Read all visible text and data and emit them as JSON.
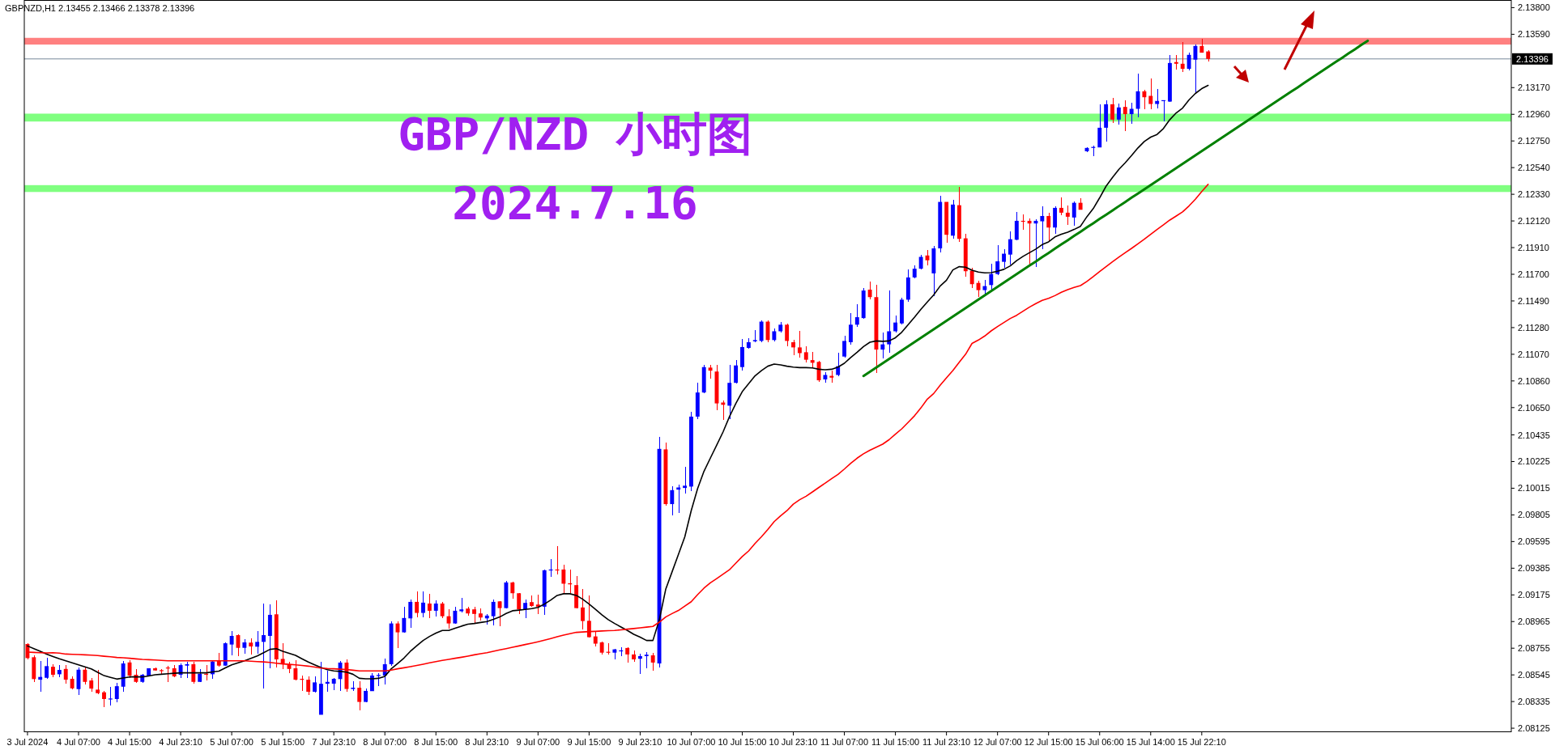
{
  "chart_data": {
    "type": "candlestick",
    "title": "GBP/NZD 小时图",
    "subtitle": "2024.7.16",
    "annotations": [
      "GBPNZD,H1  2.13455 2.13466 2.13378 2.13396"
    ],
    "categories": [
      "3 Jul 2024",
      null,
      null,
      null,
      null,
      null,
      null,
      null,
      "4 Jul 07:00",
      null,
      null,
      null,
      null,
      null,
      null,
      null,
      "4 Jul 15:00",
      null,
      null,
      null,
      null,
      null,
      null,
      null,
      "4 Jul 23:10",
      null,
      null,
      null,
      null,
      null,
      null,
      null,
      "5 Jul 07:00",
      null,
      null,
      null,
      null,
      null,
      null,
      null,
      "5 Jul 15:00",
      null,
      null,
      null,
      null,
      null,
      null,
      null,
      "7 Jul 23:10",
      null,
      null,
      null,
      null,
      null,
      null,
      null,
      "8 Jul 07:00",
      null,
      null,
      null,
      null,
      null,
      null,
      null,
      "8 Jul 15:00",
      null,
      null,
      null,
      null,
      null,
      null,
      null,
      "8 Jul 23:10",
      null,
      null,
      null,
      null,
      null,
      null,
      null,
      "9 Jul 07:00",
      null,
      null,
      null,
      null,
      null,
      null,
      null,
      "9 Jul 15:00",
      null,
      null,
      null,
      null,
      null,
      null,
      null,
      "9 Jul 23:10",
      null,
      null,
      null,
      null,
      null,
      null,
      null,
      "10 Jul 07:00",
      null,
      null,
      null,
      null,
      null,
      null,
      null,
      "10 Jul 15:00",
      null,
      null,
      null,
      null,
      null,
      null,
      null,
      "10 Jul 23:10",
      null,
      null,
      null,
      null,
      null,
      null,
      null,
      "11 Jul 07:00",
      null,
      null,
      null,
      null,
      null,
      null,
      null,
      "11 Jul 15:00",
      null,
      null,
      null,
      null,
      null,
      null,
      null,
      "11 Jul 23:10",
      null,
      null,
      null,
      null,
      null,
      null,
      null,
      "12 Jul 07:00",
      null,
      null,
      null,
      null,
      null,
      null,
      null,
      "12 Jul 15:00",
      null,
      null,
      null,
      null,
      null,
      null,
      null,
      "15 Jul 06:00",
      null,
      null,
      null,
      null,
      null,
      null,
      null,
      "15 Jul 14:00",
      null,
      null,
      null,
      null,
      null,
      null,
      null,
      "15 Jul 22:10",
      null,
      null,
      null,
      null,
      null,
      null,
      null,
      null,
      null,
      null,
      null,
      null,
      null,
      null,
      null,
      null,
      null,
      null,
      null,
      null,
      null,
      null,
      null,
      null,
      null,
      null,
      null,
      null,
      null,
      null,
      null,
      null,
      null,
      null,
      null,
      null,
      null,
      null,
      null,
      null,
      null,
      null,
      null,
      null,
      null,
      null,
      null,
      null
    ],
    "ohlc": [
      [
        2.08788,
        2.08794,
        2.08667,
        2.08677
      ],
      [
        2.08684,
        2.08699,
        2.0849,
        2.08512
      ],
      [
        2.08507,
        2.08656,
        2.08412,
        2.08529
      ],
      [
        2.08522,
        2.08677,
        2.08512,
        2.08614
      ],
      [
        2.08609,
        2.08631,
        2.08529,
        2.08546
      ],
      [
        2.0855,
        2.08624,
        2.08529,
        2.08584
      ],
      [
        2.08592,
        2.08624,
        2.08475,
        2.08507
      ],
      [
        2.08514,
        2.08533,
        2.08433,
        2.08439
      ],
      [
        2.08433,
        2.08603,
        2.08386,
        2.08586
      ],
      [
        2.08586,
        2.08603,
        2.08469,
        2.0849
      ],
      [
        2.08501,
        2.08518,
        2.08412,
        2.08437
      ],
      [
        2.08429,
        2.08586,
        2.08395,
        2.08401
      ],
      [
        2.08408,
        2.08418,
        2.08291,
        2.08355
      ],
      [
        2.08355,
        2.08448,
        2.08301,
        2.08359
      ],
      [
        2.08355,
        2.0848,
        2.08327,
        2.08456
      ],
      [
        2.08452,
        2.08656,
        2.08412,
        2.08635
      ],
      [
        2.08643,
        2.0866,
        2.08522,
        2.08539
      ],
      [
        2.08546,
        2.08592,
        2.08482,
        2.0849
      ],
      [
        2.0849,
        2.08554,
        2.08482,
        2.08546
      ],
      [
        2.08539,
        2.08597,
        2.08533,
        2.08597
      ],
      [
        2.08597,
        2.08603,
        2.08575,
        2.0858
      ],
      [
        2.08582,
        2.08592,
        2.0855,
        2.08575
      ],
      [
        2.08603,
        2.08618,
        2.0849,
        2.08599
      ],
      [
        2.08597,
        2.08624,
        2.08524,
        2.08533
      ],
      [
        2.08546,
        2.08635,
        2.08518,
        2.08622
      ],
      [
        2.08618,
        2.0865,
        2.08522,
        2.08629
      ],
      [
        2.08629,
        2.0865,
        2.08475,
        2.0849
      ],
      [
        2.0849,
        2.08592,
        2.0849,
        2.08554
      ],
      [
        2.08554,
        2.08624,
        2.08501,
        2.0855
      ],
      [
        2.0855,
        2.08656,
        2.08512,
        2.0865
      ],
      [
        2.08656,
        2.0872,
        2.08607,
        2.08618
      ],
      [
        2.08618,
        2.08799,
        2.08614,
        2.08794
      ],
      [
        2.08784,
        2.0889,
        2.08699,
        2.08852
      ],
      [
        2.08858,
        2.08862,
        2.08694,
        2.08758
      ],
      [
        2.08758,
        2.08826,
        2.08714,
        2.08801
      ],
      [
        2.08799,
        2.08831,
        2.08707,
        2.08769
      ],
      [
        2.08767,
        2.0889,
        2.08709,
        2.08805
      ],
      [
        2.08805,
        2.09107,
        2.08439,
        2.08858
      ],
      [
        2.08852,
        2.09098,
        2.08597,
        2.09018
      ],
      [
        2.09022,
        2.09132,
        2.08603,
        2.08667
      ],
      [
        2.08671,
        2.08794,
        2.08592,
        2.08629
      ],
      [
        2.08624,
        2.0865,
        2.0856,
        2.08592
      ],
      [
        2.08597,
        2.0866,
        2.08501,
        2.08507
      ],
      [
        2.08514,
        2.08539,
        2.08418,
        2.08507
      ],
      [
        2.08507,
        2.08533,
        2.08386,
        2.08412
      ],
      [
        2.08412,
        2.08533,
        2.08405,
        2.08486
      ],
      [
        2.08231,
        2.0865,
        2.08231,
        2.08475
      ],
      [
        2.08475,
        2.0858,
        2.08412,
        2.0849
      ],
      [
        2.08476,
        2.08518,
        2.08423,
        2.08514
      ],
      [
        2.08512,
        2.08657,
        2.08417,
        2.08642
      ],
      [
        2.08642,
        2.08667,
        2.08412,
        2.08434
      ],
      [
        2.08434,
        2.08493,
        2.08417,
        2.08444
      ],
      [
        2.08444,
        2.08498,
        2.08268,
        2.08332
      ],
      [
        2.08332,
        2.08438,
        2.08327,
        2.08419
      ],
      [
        2.08417,
        2.08561,
        2.08417,
        2.0854
      ],
      [
        2.08536,
        2.08561,
        2.08459,
        2.08544
      ],
      [
        2.0854,
        2.08674,
        2.08472,
        2.08629
      ],
      [
        2.08629,
        2.08965,
        2.08614,
        2.0895
      ],
      [
        2.0895,
        2.08965,
        2.08757,
        2.0888
      ],
      [
        2.0888,
        2.09082,
        2.0888,
        2.08993
      ],
      [
        2.0899,
        2.09141,
        2.08916,
        2.0912
      ],
      [
        2.0912,
        2.09203,
        2.09001,
        2.09033
      ],
      [
        2.09033,
        2.09203,
        2.09001,
        2.09114
      ],
      [
        2.09107,
        2.09184,
        2.0899,
        2.0905
      ],
      [
        2.0905,
        2.09135,
        2.09007,
        2.09107
      ],
      [
        2.09107,
        2.09118,
        2.0899,
        2.09007
      ],
      [
        2.09007,
        2.09061,
        2.08912,
        2.0895
      ],
      [
        2.0895,
        2.09082,
        2.08948,
        2.0905
      ],
      [
        2.09046,
        2.09152,
        2.09035,
        2.09061
      ],
      [
        2.09067,
        2.09082,
        2.09012,
        2.09029
      ],
      [
        2.09061,
        2.09082,
        2.08954,
        2.09025
      ],
      [
        2.09029,
        2.09067,
        2.08976,
        2.08997
      ],
      [
        2.0899,
        2.09022,
        2.08944,
        2.09012
      ],
      [
        2.09007,
        2.09141,
        2.08937,
        2.0912
      ],
      [
        2.09124,
        2.09129,
        2.08929,
        2.09071
      ],
      [
        2.09071,
        2.09288,
        2.09067,
        2.09273
      ],
      [
        2.09273,
        2.09278,
        2.09146,
        2.09188
      ],
      [
        2.09188,
        2.09192,
        2.09022,
        2.09061
      ],
      [
        2.09061,
        2.09139,
        2.08993,
        2.09112
      ],
      [
        2.09118,
        2.09171,
        2.09082,
        2.09088
      ],
      [
        2.09099,
        2.09178,
        2.09022,
        2.09082
      ],
      [
        2.09082,
        2.09373,
        2.09018,
        2.09369
      ],
      [
        2.09369,
        2.09458,
        2.09316,
        2.09375
      ],
      [
        2.09375,
        2.0956,
        2.09337,
        2.09369
      ],
      [
        2.09375,
        2.09411,
        2.09188,
        2.09263
      ],
      [
        2.09267,
        2.09373,
        2.09188,
        2.09258
      ],
      [
        2.09252,
        2.09322,
        2.09067,
        2.09071
      ],
      [
        2.09076,
        2.0922,
        2.08905,
        2.08969
      ],
      [
        2.08971,
        2.09171,
        2.08837,
        2.08842
      ],
      [
        2.08848,
        2.08884,
        2.0877,
        2.08791
      ],
      [
        2.08801,
        2.08806,
        2.08704,
        2.0872
      ],
      [
        2.08727,
        2.08795,
        2.08704,
        2.0872
      ],
      [
        2.0872,
        2.08752,
        2.08667,
        2.08746
      ],
      [
        2.08731,
        2.08763,
        2.08693,
        2.08738
      ],
      [
        2.08757,
        2.08763,
        2.08642,
        2.08706
      ],
      [
        2.08706,
        2.08736,
        2.0865,
        2.08667
      ],
      [
        2.08672,
        2.0871,
        2.08555,
        2.08693
      ],
      [
        2.08693,
        2.08725,
        2.08597,
        2.08704
      ],
      [
        2.08699,
        2.08721,
        2.08578,
        2.08642
      ],
      [
        2.08635,
        2.10421,
        2.08603,
        2.10325
      ],
      [
        2.10321,
        2.10372,
        2.0988,
        2.0989
      ],
      [
        2.0989,
        2.10028,
        2.09804,
        2.1
      ],
      [
        2.10004,
        2.10045,
        2.09821,
        2.10021
      ],
      [
        2.10017,
        2.10183,
        2.09976,
        2.10035
      ],
      [
        2.10028,
        2.10614,
        2.09993,
        2.10579
      ],
      [
        2.10579,
        2.10845,
        2.10562,
        2.10769
      ],
      [
        2.10769,
        2.10989,
        2.10762,
        2.10969
      ],
      [
        2.10965,
        2.10989,
        2.10879,
        2.10941
      ],
      [
        2.10934,
        2.10989,
        2.10631,
        2.10683
      ],
      [
        2.1069,
        2.10707,
        2.10555,
        2.10672
      ],
      [
        2.10665,
        2.10989,
        2.10562,
        2.10845
      ],
      [
        2.10845,
        2.11024,
        2.10838,
        2.10982
      ],
      [
        2.10969,
        2.11189,
        2.10941,
        2.11127
      ],
      [
        2.1112,
        2.11196,
        2.11113,
        2.11165
      ],
      [
        2.11172,
        2.11262,
        2.11165,
        2.11182
      ],
      [
        2.11175,
        2.11337,
        2.11165,
        2.11327
      ],
      [
        2.11327,
        2.11337,
        2.11165,
        2.11182
      ],
      [
        2.11182,
        2.11276,
        2.11172,
        2.11251
      ],
      [
        2.11251,
        2.11327,
        2.11244,
        2.11303
      ],
      [
        2.11303,
        2.1131,
        2.11131,
        2.11175
      ],
      [
        2.11165,
        2.11182,
        2.11062,
        2.11124
      ],
      [
        2.11124,
        2.11251,
        2.11045,
        2.11079
      ],
      [
        2.11086,
        2.11131,
        2.11003,
        2.11027
      ],
      [
        2.11024,
        2.11086,
        2.10969,
        2.11003
      ],
      [
        2.1101,
        2.1102,
        2.10855,
        2.10865
      ],
      [
        2.10872,
        2.10931,
        2.10845,
        2.10907
      ],
      [
        2.109,
        2.10941,
        2.10845,
        2.10886
      ],
      [
        2.10907,
        2.11079,
        2.109,
        2.10976
      ],
      [
        2.11052,
        2.11217,
        2.11045,
        2.11175
      ],
      [
        2.11165,
        2.11396,
        2.11148,
        2.11303
      ],
      [
        2.11303,
        2.11465,
        2.11286,
        2.11362
      ],
      [
        2.11355,
        2.11589,
        2.11348,
        2.11572
      ],
      [
        2.11579,
        2.11641,
        2.11503,
        2.1152
      ],
      [
        2.1152,
        2.1162,
        2.10921,
        2.11107
      ],
      [
        2.11107,
        2.11244,
        2.11038,
        2.11148
      ],
      [
        2.11148,
        2.11572,
        2.11079,
        2.11251
      ],
      [
        2.11251,
        2.11372,
        2.11244,
        2.1132
      ],
      [
        2.11313,
        2.11517,
        2.11303,
        2.115
      ],
      [
        2.115,
        2.11741,
        2.11486,
        2.11675
      ],
      [
        2.11675,
        2.11768,
        2.11665,
        2.11744
      ],
      [
        2.11744,
        2.11854,
        2.11741,
        2.11837
      ],
      [
        2.11848,
        2.11889,
        2.11768,
        2.1181
      ],
      [
        2.11707,
        2.11925,
        2.1153,
        2.11904
      ],
      [
        2.11904,
        2.12317,
        2.11872,
        2.1227
      ],
      [
        2.1227,
        2.1227,
        2.11947,
        2.12011
      ],
      [
        2.12004,
        2.12285,
        2.11983,
        2.12249
      ],
      [
        2.12244,
        2.12391,
        2.11957,
        2.11979
      ],
      [
        2.11983,
        2.12021,
        2.11679,
        2.11724
      ],
      [
        2.11728,
        2.11749,
        2.1159,
        2.11622
      ],
      [
        2.11632,
        2.11649,
        2.1152,
        2.11575
      ],
      [
        2.11575,
        2.11658,
        2.11543,
        2.11607
      ],
      [
        2.11615,
        2.11781,
        2.11564,
        2.11702
      ],
      [
        2.11702,
        2.1193,
        2.11692,
        2.11802
      ],
      [
        2.11798,
        2.11898,
        2.11749,
        2.11862
      ],
      [
        2.11855,
        2.1204,
        2.11777,
        2.11976
      ],
      [
        2.11972,
        2.12189,
        2.11968,
        2.12121
      ],
      [
        2.12121,
        2.12174,
        2.12053,
        2.12117
      ],
      [
        2.12121,
        2.12142,
        2.1177,
        2.121
      ],
      [
        2.121,
        2.12132,
        2.1176,
        2.12121
      ],
      [
        2.12117,
        2.12238,
        2.11898,
        2.12159
      ],
      [
        2.12159,
        2.12185,
        2.11955,
        2.12068
      ],
      [
        2.12068,
        2.12238,
        2.12021,
        2.12223
      ],
      [
        2.12223,
        2.12306,
        2.12164,
        2.12185
      ],
      [
        2.12185,
        2.12244,
        2.12089,
        2.12153
      ],
      [
        2.12147,
        2.12274,
        2.12085,
        2.12263
      ],
      [
        2.12263,
        2.123,
        2.12208,
        2.12208
      ],
      [
        2.12669,
        2.12701,
        2.12663,
        2.12695
      ],
      [
        2.12695,
        2.12716,
        2.12631,
        2.12703
      ],
      [
        2.12699,
        2.13041,
        2.12699,
        2.12854
      ],
      [
        2.12854,
        2.13067,
        2.12744,
        2.13039
      ],
      [
        2.13039,
        2.13086,
        2.1289,
        2.12918
      ],
      [
        2.12918,
        2.13045,
        2.12876,
        2.13014
      ],
      [
        2.13018,
        2.13067,
        2.12827,
        2.12961
      ],
      [
        2.12961,
        2.1305,
        2.12882,
        2.13003
      ],
      [
        2.13003,
        2.13277,
        2.12939,
        2.13141
      ],
      [
        2.13141,
        2.1315,
        2.12997,
        2.13094
      ],
      [
        2.13105,
        2.13243,
        2.13003,
        2.13041
      ],
      [
        2.13041,
        2.13158,
        2.13009,
        2.13065
      ],
      [
        2.13065,
        2.13073,
        2.12903,
        2.13071
      ],
      [
        2.1306,
        2.13424,
        2.13056,
        2.13364
      ],
      [
        2.13371,
        2.13424,
        2.13311,
        2.13358
      ],
      [
        2.13358,
        2.1353,
        2.13296,
        2.13318
      ],
      [
        2.13318,
        2.13443,
        2.13305,
        2.13428
      ],
      [
        2.1339,
        2.13507,
        2.13131,
        2.13498
      ],
      [
        2.13498,
        2.13556,
        2.13443,
        2.13445
      ],
      [
        2.13455,
        2.13466,
        2.13378,
        2.13396
      ],
      null,
      null,
      null,
      null,
      null,
      null,
      null,
      null,
      null,
      null,
      null,
      null,
      null,
      null,
      null,
      null,
      null,
      null,
      null,
      null,
      null,
      null,
      null,
      null,
      null,
      null,
      null,
      null,
      null,
      null,
      null,
      null,
      null,
      null,
      null,
      null,
      null,
      null,
      null,
      null,
      null,
      null,
      null,
      null,
      null,
      null,
      null
    ],
    "colors": [
      "#ff0000",
      "#ff0000",
      "#0000ff",
      "#0000ff",
      "#ff0000",
      "#0000ff",
      "#ff0000",
      "#ff0000",
      "#0000ff",
      "#ff0000",
      "#ff0000",
      "#ff0000",
      "#ff0000",
      "#0000ff",
      "#0000ff",
      "#0000ff",
      "#ff0000",
      "#ff0000",
      "#0000ff",
      "#0000ff",
      "#ff0000",
      "#ff0000",
      "#ff0000",
      "#ff0000",
      "#0000ff",
      "#0000ff",
      "#ff0000",
      "#0000ff",
      "#ff0000",
      "#0000ff",
      "#ff0000",
      "#0000ff",
      "#0000ff",
      "#ff0000",
      "#0000ff",
      "#ff0000",
      "#0000ff",
      "#0000ff",
      "#0000ff",
      "#ff0000",
      "#ff0000",
      "#ff0000",
      "#ff0000",
      "#ff0000",
      "#ff0000",
      "#0000ff",
      "#0000ff",
      "#0000ff",
      "#0000ff",
      "#0000ff",
      "#ff0000",
      "#0000ff",
      "#ff0000",
      "#0000ff",
      "#0000ff",
      "#0000ff",
      "#0000ff",
      "#0000ff",
      "#ff0000",
      "#0000ff",
      "#0000ff",
      "#ff0000",
      "#0000ff",
      "#ff0000",
      "#0000ff",
      "#ff0000",
      "#ff0000",
      "#0000ff",
      "#0000ff",
      "#ff0000",
      "#ff0000",
      "#ff0000",
      "#0000ff",
      "#0000ff",
      "#ff0000",
      "#0000ff",
      "#ff0000",
      "#ff0000",
      "#0000ff",
      "#ff0000",
      "#ff0000",
      "#0000ff",
      "#0000ff",
      "#ff0000",
      "#ff0000",
      "#ff0000",
      "#ff0000",
      "#ff0000",
      "#ff0000",
      "#ff0000",
      "#ff0000",
      "#ff0000",
      "#0000ff",
      "#0000ff",
      "#ff0000",
      "#ff0000",
      "#0000ff",
      "#0000ff",
      "#ff0000",
      "#0000ff",
      "#ff0000",
      "#0000ff",
      "#0000ff",
      "#0000ff",
      "#0000ff",
      "#0000ff",
      "#0000ff",
      "#ff0000",
      "#ff0000",
      "#ff0000",
      "#0000ff",
      "#0000ff",
      "#0000ff",
      "#0000ff",
      "#0000ff",
      "#0000ff",
      "#ff0000",
      "#0000ff",
      "#0000ff",
      "#ff0000",
      "#ff0000",
      "#ff0000",
      "#ff0000",
      "#ff0000",
      "#ff0000",
      "#0000ff",
      "#ff0000",
      "#0000ff",
      "#0000ff",
      "#0000ff",
      "#0000ff",
      "#0000ff",
      "#ff0000",
      "#ff0000",
      "#0000ff",
      "#0000ff",
      "#0000ff",
      "#0000ff",
      "#0000ff",
      "#0000ff",
      "#0000ff",
      "#ff0000",
      "#0000ff",
      "#0000ff",
      "#ff0000",
      "#0000ff",
      "#ff0000",
      "#ff0000",
      "#ff0000",
      "#ff0000",
      "#0000ff",
      "#0000ff",
      "#0000ff",
      "#0000ff",
      "#0000ff",
      "#0000ff",
      "#ff0000",
      "#ff0000",
      "#0000ff",
      "#0000ff",
      "#ff0000",
      "#0000ff",
      "#ff0000",
      "#ff0000",
      "#0000ff",
      "#ff0000",
      "#0000ff",
      "#0000ff",
      "#0000ff",
      "#0000ff",
      "#ff0000",
      "#0000ff",
      "#ff0000",
      "#0000ff",
      "#0000ff",
      "#ff0000",
      "#ff0000",
      "#0000ff",
      "#0000ff",
      "#0000ff",
      "#ff0000",
      "#ff0000",
      "#0000ff",
      "#0000ff",
      "#ff0000",
      "#ff0000",
      null,
      null,
      null,
      null,
      null,
      null,
      null,
      null,
      null,
      null,
      null,
      null,
      null,
      null,
      null,
      null,
      null,
      null,
      null,
      null,
      null,
      null,
      null,
      null,
      null,
      null,
      null,
      null,
      null,
      null,
      null,
      null,
      null,
      null,
      null,
      null,
      null,
      null,
      null,
      null,
      null,
      null,
      null,
      null,
      null,
      null,
      null
    ],
    "series": [
      {
        "type": "line",
        "color": "#000000",
        "values": [
          2.08773,
          2.08752,
          2.08731,
          2.08709,
          2.0869,
          2.08672,
          2.08656,
          2.0864,
          2.08624,
          2.08608,
          2.08592,
          2.08565,
          2.08539,
          2.08525,
          2.08512,
          2.0852,
          2.08529,
          2.08529,
          2.08529,
          2.08537,
          2.08546,
          2.0855,
          2.08554,
          2.08558,
          2.08561,
          2.08561,
          2.08561,
          2.08561,
          2.08561,
          2.08568,
          2.08575,
          2.086,
          2.08624,
          2.0864,
          2.08656,
          2.08675,
          2.08694,
          2.0872,
          2.08746,
          2.08752,
          2.08731,
          2.08715,
          2.08699,
          2.08672,
          2.08646,
          2.08624,
          2.08603,
          2.08586,
          2.08576,
          2.08572,
          2.08567,
          2.0855,
          2.08518,
          2.08514,
          2.08514,
          2.08518,
          2.08534,
          2.08593,
          2.08635,
          2.08678,
          2.08731,
          2.08774,
          2.08816,
          2.08848,
          2.08874,
          2.08895,
          2.08895,
          2.08912,
          2.08929,
          2.08944,
          2.0895,
          2.08958,
          2.08965,
          2.08982,
          2.09001,
          2.09029,
          2.0905,
          2.09055,
          2.09061,
          2.09067,
          2.09076,
          2.09103,
          2.09135,
          2.09171,
          2.09184,
          2.09184,
          2.09171,
          2.09141,
          2.09103,
          2.09061,
          2.09018,
          2.0898,
          2.0895,
          2.08922,
          2.08895,
          2.08865,
          2.08842,
          2.08816,
          2.08816,
          2.08977,
          2.09218,
          2.09356,
          2.09494,
          2.09632,
          2.09838,
          2.10011,
          2.10148,
          2.10252,
          2.10355,
          2.10459,
          2.10579,
          2.10683,
          2.10776,
          2.10838,
          2.109,
          2.10941,
          2.10976,
          2.10993,
          2.10986,
          2.10976,
          2.10969,
          2.10965,
          2.10965,
          2.10962,
          2.10952,
          2.10948,
          2.10952,
          2.10969,
          2.10999,
          2.11045,
          2.11086,
          2.11131,
          2.11165,
          2.11175,
          2.11172,
          2.11175,
          2.112,
          2.11244,
          2.11303,
          2.11362,
          2.11424,
          2.11482,
          2.11537,
          2.11607,
          2.11653,
          2.11734,
          2.1176,
          2.11756,
          2.11732,
          2.11717,
          2.11711,
          2.11713,
          2.11724,
          2.11739,
          2.11766,
          2.11807,
          2.11841,
          2.1187,
          2.11898,
          2.11934,
          2.11955,
          2.11994,
          2.12015,
          2.12032,
          2.12053,
          2.12078,
          2.12153,
          2.12217,
          2.12302,
          2.12393,
          2.12461,
          2.12525,
          2.12578,
          2.12635,
          2.12695,
          2.12746,
          2.1278,
          2.12801,
          2.12848,
          2.12918,
          2.12971,
          2.13009,
          2.13073,
          2.13124,
          2.13162,
          2.13188,
          null,
          null,
          null,
          null,
          null,
          null,
          null,
          null,
          null,
          null,
          null,
          null,
          null,
          null,
          null,
          null,
          null,
          null,
          null,
          null,
          null,
          null,
          null,
          null,
          null,
          null,
          null,
          null,
          null,
          null,
          null,
          null,
          null,
          null,
          null,
          null,
          null,
          null,
          null,
          null,
          null,
          null,
          null,
          null,
          null,
          null,
          null
        ]
      },
      {
        "type": "line",
        "color": "#ff0000",
        "values": [
          2.08724,
          2.08722,
          2.0872,
          2.08718,
          2.0872,
          2.08716,
          2.08709,
          2.08707,
          2.08705,
          2.08703,
          2.08701,
          2.08697,
          2.08692,
          2.08688,
          2.08682,
          2.0868,
          2.08676,
          2.08671,
          2.08667,
          2.08665,
          2.08662,
          2.08659,
          2.08656,
          2.08656,
          2.08656,
          2.08656,
          2.08656,
          2.08656,
          2.08656,
          2.08656,
          2.08656,
          2.08656,
          2.08656,
          2.08656,
          2.08656,
          2.08653,
          2.0865,
          2.08647,
          2.08643,
          2.08637,
          2.08631,
          2.08628,
          2.08624,
          2.08619,
          2.08614,
          2.08607,
          2.08599,
          2.08595,
          2.08593,
          2.0859,
          2.08587,
          2.08582,
          2.08576,
          2.08576,
          2.08576,
          2.08576,
          2.08576,
          2.08583,
          2.08593,
          2.08601,
          2.0861,
          2.08619,
          2.08629,
          2.0864,
          2.0865,
          2.08659,
          2.08667,
          2.08676,
          2.08684,
          2.08693,
          2.08703,
          2.08712,
          2.0872,
          2.08731,
          2.08742,
          2.08752,
          2.08763,
          2.08773,
          2.08784,
          2.08795,
          2.08806,
          2.08818,
          2.08831,
          2.08845,
          2.08858,
          2.08869,
          2.0888,
          2.08883,
          2.08886,
          2.08888,
          2.08891,
          2.08893,
          2.08895,
          2.089,
          2.08905,
          2.0891,
          2.08916,
          2.08921,
          2.08927,
          2.0896,
          2.09001,
          2.09028,
          2.09052,
          2.09087,
          2.09121,
          2.09177,
          2.09228,
          2.0927,
          2.09304,
          2.09339,
          2.09373,
          2.09425,
          2.09477,
          2.09521,
          2.0958,
          2.09632,
          2.0969,
          2.09752,
          2.09797,
          2.09838,
          2.0989,
          2.09925,
          2.09952,
          2.09986,
          2.10021,
          2.10055,
          2.1009,
          2.10124,
          2.10166,
          2.10211,
          2.10252,
          2.10286,
          2.10314,
          2.10338,
          2.10362,
          2.10397,
          2.10441,
          2.10483,
          2.10534,
          2.10586,
          2.10648,
          2.10717,
          2.10761,
          2.10825,
          2.10884,
          2.10942,
          2.11007,
          2.1107,
          2.11155,
          2.11182,
          2.11214,
          2.11254,
          2.11288,
          2.1132,
          2.11352,
          2.11377,
          2.11409,
          2.11441,
          2.11469,
          2.11494,
          2.11511,
          2.11532,
          2.11558,
          2.11579,
          2.11596,
          2.11611,
          2.11643,
          2.11681,
          2.11721,
          2.1176,
          2.11798,
          2.11834,
          2.1187,
          2.11904,
          2.1194,
          2.11976,
          2.12015,
          2.12053,
          2.12089,
          2.12127,
          2.12159,
          2.12191,
          2.12238,
          2.12291,
          2.12351,
          2.12408,
          null,
          null,
          null,
          null,
          null,
          null,
          null,
          null,
          null,
          null,
          null,
          null,
          null,
          null,
          null,
          null,
          null,
          null,
          null,
          null,
          null,
          null,
          null,
          null,
          null,
          null,
          null,
          null,
          null,
          null,
          null,
          null,
          null,
          null,
          null,
          null,
          null,
          null,
          null,
          null,
          null,
          null,
          null,
          null,
          null,
          null,
          null
        ]
      },
      {
        "type": "line",
        "color": "#008000",
        "values": [
          null,
          null,
          null,
          null,
          null,
          null,
          null,
          null,
          null,
          null,
          null,
          null,
          null,
          null,
          null,
          null,
          null,
          null,
          null,
          null,
          null,
          null,
          null,
          null,
          null,
          null,
          null,
          null,
          null,
          null,
          null,
          null,
          null,
          null,
          null,
          null,
          null,
          null,
          null,
          null,
          null,
          null,
          null,
          null,
          null,
          null,
          null,
          null,
          null,
          null,
          null,
          null,
          null,
          null,
          null,
          null,
          null,
          null,
          null,
          null,
          null,
          null,
          null,
          null,
          null,
          null,
          null,
          null,
          null,
          null,
          null,
          null,
          null,
          null,
          null,
          null,
          null,
          null,
          null,
          null,
          null,
          null,
          null,
          null,
          null,
          null,
          null,
          null,
          null,
          null,
          null,
          null,
          null,
          null,
          null,
          null,
          null,
          null,
          null,
          null,
          null,
          null,
          null,
          null,
          null,
          null,
          null,
          null,
          null,
          null,
          null,
          null,
          null,
          null,
          null,
          null,
          null,
          null,
          null,
          null,
          null,
          null,
          null,
          null,
          null,
          null,
          null,
          null,
          null,
          null,
          null,
          2.10899,
          2.10932,
          2.10966,
          2.10999,
          2.11033,
          2.11066,
          2.111,
          2.11133,
          2.11166,
          2.112,
          2.11233,
          2.11267,
          2.113,
          2.11333,
          2.11367,
          2.114,
          2.11434,
          2.11467,
          2.11501,
          2.11534,
          2.11567,
          2.11601,
          2.11634,
          2.11668,
          2.11701,
          2.11735,
          2.11768,
          2.11801,
          2.11835,
          2.11868,
          2.11902,
          2.11935,
          2.11968,
          2.12002,
          2.12035,
          2.12069,
          2.12102,
          2.12136,
          2.12169,
          2.12202,
          2.12236,
          2.12269,
          2.12303,
          2.12336,
          2.12369,
          2.12403,
          2.12436,
          2.1247,
          2.12503,
          2.12537,
          2.1257,
          2.12603,
          2.12637,
          2.1267,
          2.12704,
          2.12737,
          2.1277,
          2.12804,
          2.12837,
          2.12871,
          2.12904,
          2.12938,
          2.12971,
          2.13004,
          2.13038,
          2.13071,
          2.13105,
          2.13138,
          2.13171,
          2.13205,
          2.13238,
          2.13272,
          2.13305,
          2.13339,
          2.13372,
          2.13405,
          2.13439,
          2.13472,
          2.13506,
          2.13539,
          null,
          null,
          null,
          null,
          null,
          null,
          null,
          null,
          null,
          null,
          null,
          null,
          null,
          null,
          null,
          null,
          null,
          null,
          null,
          null,
          null,
          null
        ]
      }
    ],
    "bands": [
      {
        "axis": "y",
        "from": 2.13509,
        "to": 2.13562,
        "color": "#ff8080"
      },
      {
        "axis": "y",
        "from": 2.12903,
        "to": 2.12965,
        "color": "#80ff80"
      },
      {
        "axis": "y",
        "from": 2.12348,
        "to": 2.12402,
        "color": "#80ff80"
      }
    ],
    "ref_lines": [
      {
        "axis": "y",
        "value": 2.13396,
        "label": "2.13396",
        "color": "#778899"
      }
    ],
    "ylim": [
      2.081,
      2.1386
    ],
    "yticks": [
      {
        "value": 2.138,
        "label": "2.13800"
      },
      {
        "value": 2.1359,
        "label": "2.13590"
      },
      {
        "value": 2.1317,
        "label": "2.13170"
      },
      {
        "value": 2.1296,
        "label": "2.12960"
      },
      {
        "value": 2.1275,
        "label": "2.12750"
      },
      {
        "value": 2.1254,
        "label": "2.12540"
      },
      {
        "value": 2.1233,
        "label": "2.12330"
      },
      {
        "value": 2.1212,
        "label": "2.12120"
      },
      {
        "value": 2.1191,
        "label": "2.11910"
      },
      {
        "value": 2.117,
        "label": "2.11700"
      },
      {
        "value": 2.1149,
        "label": "2.11490"
      },
      {
        "value": 2.1128,
        "label": "2.11280"
      },
      {
        "value": 2.1107,
        "label": "2.11070"
      },
      {
        "value": 2.1086,
        "label": "2.10860"
      },
      {
        "value": 2.1065,
        "label": "2.10650"
      },
      {
        "value": 2.10435,
        "label": "2.10435"
      },
      {
        "value": 2.10225,
        "label": "2.10225"
      },
      {
        "value": 2.10015,
        "label": "2.10015"
      },
      {
        "value": 2.09805,
        "label": "2.09805"
      },
      {
        "value": 2.09595,
        "label": "2.09595"
      },
      {
        "value": 2.09385,
        "label": "2.09385"
      },
      {
        "value": 2.09175,
        "label": "2.09175"
      },
      {
        "value": 2.08965,
        "label": "2.08965"
      },
      {
        "value": 2.08755,
        "label": "2.08755"
      },
      {
        "value": 2.08545,
        "label": "2.08545"
      },
      {
        "value": 2.08335,
        "label": "2.08335"
      },
      {
        "value": 2.08125,
        "label": "2.08125"
      }
    ]
  }
}
